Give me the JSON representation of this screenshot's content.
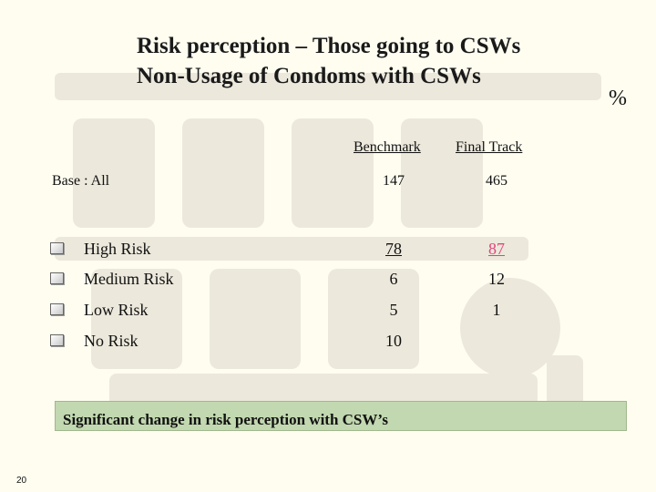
{
  "title": {
    "line1": "Risk perception – Those going to CSWs",
    "line2": "Non-Usage of Condoms with CSWs"
  },
  "unit": "%",
  "columns": {
    "benchmark": "Benchmark",
    "final_track": "Final Track"
  },
  "base": {
    "label": "Base : All",
    "benchmark": "147",
    "final_track": "465"
  },
  "rows": [
    {
      "label": "High Risk",
      "benchmark": "78",
      "final_track": "87"
    },
    {
      "label": "Medium Risk",
      "benchmark": "6",
      "final_track": "12"
    },
    {
      "label": "Low Risk",
      "benchmark": "5",
      "final_track": "1"
    },
    {
      "label": "No Risk",
      "benchmark": "10",
      "final_track": ""
    }
  ],
  "note": "Significant change in risk perception with CSW’s",
  "page_number": "20",
  "colors": {
    "highlight": "#e0457b",
    "note_bg": "#c2d8b0",
    "background": "#fffdf0"
  }
}
